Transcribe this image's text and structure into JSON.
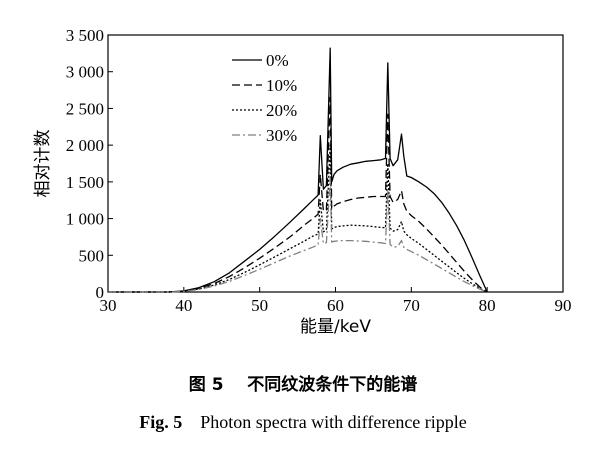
{
  "chart_data": {
    "type": "line",
    "xlabel": "能量/keV",
    "ylabel": "相对计数",
    "xlim": [
      30,
      90
    ],
    "ylim": [
      0,
      3500
    ],
    "xticks": [
      30,
      40,
      50,
      60,
      70,
      80,
      90
    ],
    "xtick_labels": [
      "30",
      "40",
      "50",
      "60",
      "70",
      "80",
      "90"
    ],
    "yticks": [
      0,
      500,
      1000,
      1500,
      2000,
      2500,
      3000,
      3500
    ],
    "ytick_labels": [
      "0",
      "500",
      "1 000",
      "1 500",
      "2 000",
      "2 500",
      "3 000",
      "3 500"
    ],
    "grid": false,
    "legend_position": "top-center",
    "series": [
      {
        "name": "0%",
        "style": "solid",
        "color": "#000000",
        "x": [
          30,
          35,
          38,
          40,
          42,
          44,
          46,
          48,
          50,
          52,
          54,
          56,
          57,
          57.7,
          58.0,
          58.4,
          58.8,
          59.3,
          59.5,
          59.8,
          60.2,
          61,
          62,
          63,
          64,
          65,
          66,
          66.6,
          66.9,
          67.2,
          67.6,
          68.2,
          68.7,
          69.0,
          69.4,
          70,
          71,
          72,
          73,
          74,
          75,
          76,
          77,
          78,
          79,
          80
        ],
        "y": [
          0,
          0,
          0,
          15,
          60,
          140,
          260,
          420,
          580,
          760,
          950,
          1150,
          1250,
          1320,
          2130,
          1400,
          1450,
          3320,
          1500,
          1600,
          1650,
          1700,
          1740,
          1760,
          1780,
          1790,
          1800,
          1820,
          3120,
          1820,
          1720,
          1800,
          2150,
          1850,
          1580,
          1560,
          1500,
          1430,
          1340,
          1220,
          1070,
          900,
          700,
          470,
          230,
          0
        ]
      },
      {
        "name": "10%",
        "style": "dashed",
        "color": "#000000",
        "x": [
          30,
          35,
          38,
          40,
          42,
          44,
          46,
          48,
          50,
          52,
          54,
          56,
          57,
          57.7,
          58.0,
          58.4,
          58.8,
          59.3,
          59.5,
          59.8,
          60.2,
          61,
          62,
          63,
          64,
          65,
          66,
          66.6,
          66.9,
          67.2,
          67.6,
          68.2,
          68.7,
          69.0,
          69.4,
          70,
          71,
          72,
          73,
          74,
          75,
          76,
          77,
          78,
          79,
          80
        ],
        "y": [
          0,
          0,
          0,
          12,
          50,
          115,
          210,
          330,
          460,
          600,
          750,
          920,
          1000,
          1060,
          1600,
          1100,
          1120,
          2650,
          1130,
          1170,
          1200,
          1230,
          1260,
          1280,
          1290,
          1300,
          1300,
          1300,
          2420,
          1300,
          1220,
          1260,
          1380,
          1200,
          1100,
          1040,
          960,
          860,
          750,
          640,
          520,
          400,
          280,
          170,
          70,
          0
        ]
      },
      {
        "name": "20%",
        "style": "dotted",
        "color": "#000000",
        "x": [
          30,
          35,
          38,
          40,
          42,
          44,
          46,
          48,
          50,
          52,
          54,
          56,
          57,
          57.7,
          58.0,
          58.4,
          58.8,
          59.3,
          59.5,
          59.8,
          60.2,
          61,
          62,
          63,
          64,
          65,
          66,
          66.6,
          66.9,
          67.2,
          67.6,
          68.2,
          68.7,
          69.0,
          69.4,
          70,
          71,
          72,
          73,
          74,
          75,
          76,
          77,
          78,
          79,
          80
        ],
        "y": [
          0,
          0,
          0,
          10,
          42,
          95,
          170,
          265,
          370,
          480,
          590,
          700,
          760,
          790,
          1250,
          820,
          850,
          2000,
          860,
          880,
          890,
          900,
          910,
          905,
          900,
          890,
          880,
          875,
          1750,
          870,
          830,
          850,
          960,
          830,
          780,
          730,
          660,
          580,
          500,
          420,
          340,
          260,
          185,
          115,
          50,
          0
        ]
      },
      {
        "name": "30%",
        "style": "dashdot",
        "color": "#808080",
        "x": [
          30,
          35,
          38,
          40,
          42,
          44,
          46,
          48,
          50,
          52,
          54,
          56,
          57,
          57.7,
          58.0,
          58.4,
          58.8,
          59.3,
          59.5,
          59.8,
          60.2,
          61,
          62,
          63,
          64,
          65,
          66,
          66.6,
          66.9,
          67.2,
          67.6,
          68.2,
          68.7,
          69.0,
          69.4,
          70,
          71,
          72,
          73,
          74,
          75,
          76,
          77,
          78,
          79,
          80
        ],
        "y": [
          0,
          0,
          0,
          8,
          35,
          80,
          145,
          225,
          310,
          400,
          490,
          570,
          610,
          640,
          1000,
          660,
          670,
          1550,
          680,
          690,
          695,
          700,
          700,
          695,
          690,
          680,
          670,
          660,
          1400,
          650,
          610,
          620,
          700,
          610,
          580,
          550,
          500,
          440,
          380,
          320,
          260,
          200,
          140,
          90,
          40,
          0
        ]
      }
    ]
  },
  "caption": {
    "cn": "图 5    不同纹波条件下的能谱",
    "en_label": "Fig. 5",
    "en_text": "Photon spectra with difference ripple"
  }
}
